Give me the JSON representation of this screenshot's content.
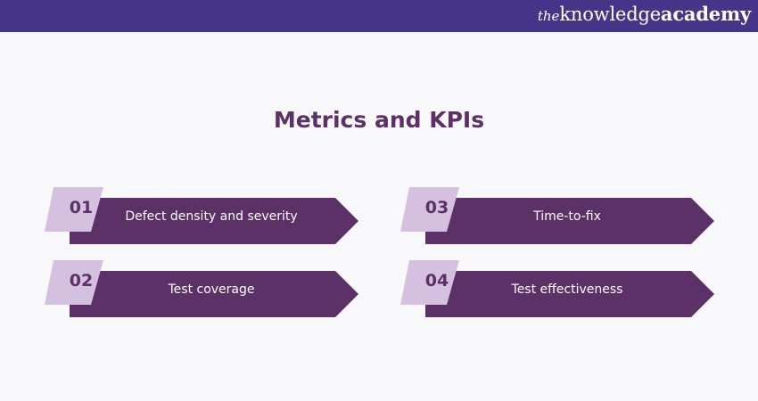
{
  "brand": {
    "prefix": "the",
    "name_light": "knowledge",
    "name_bold": "academy"
  },
  "title": "Metrics and KPIs",
  "colors": {
    "header": "#453488",
    "arrow": "#5b3168",
    "tab": "#d5c0df",
    "title": "#5b3168"
  },
  "items": [
    {
      "number": "01",
      "label": "Defect density and severity"
    },
    {
      "number": "02",
      "label": "Test coverage"
    },
    {
      "number": "03",
      "label": "Time-to-fix"
    },
    {
      "number": "04",
      "label": "Test effectiveness"
    }
  ]
}
